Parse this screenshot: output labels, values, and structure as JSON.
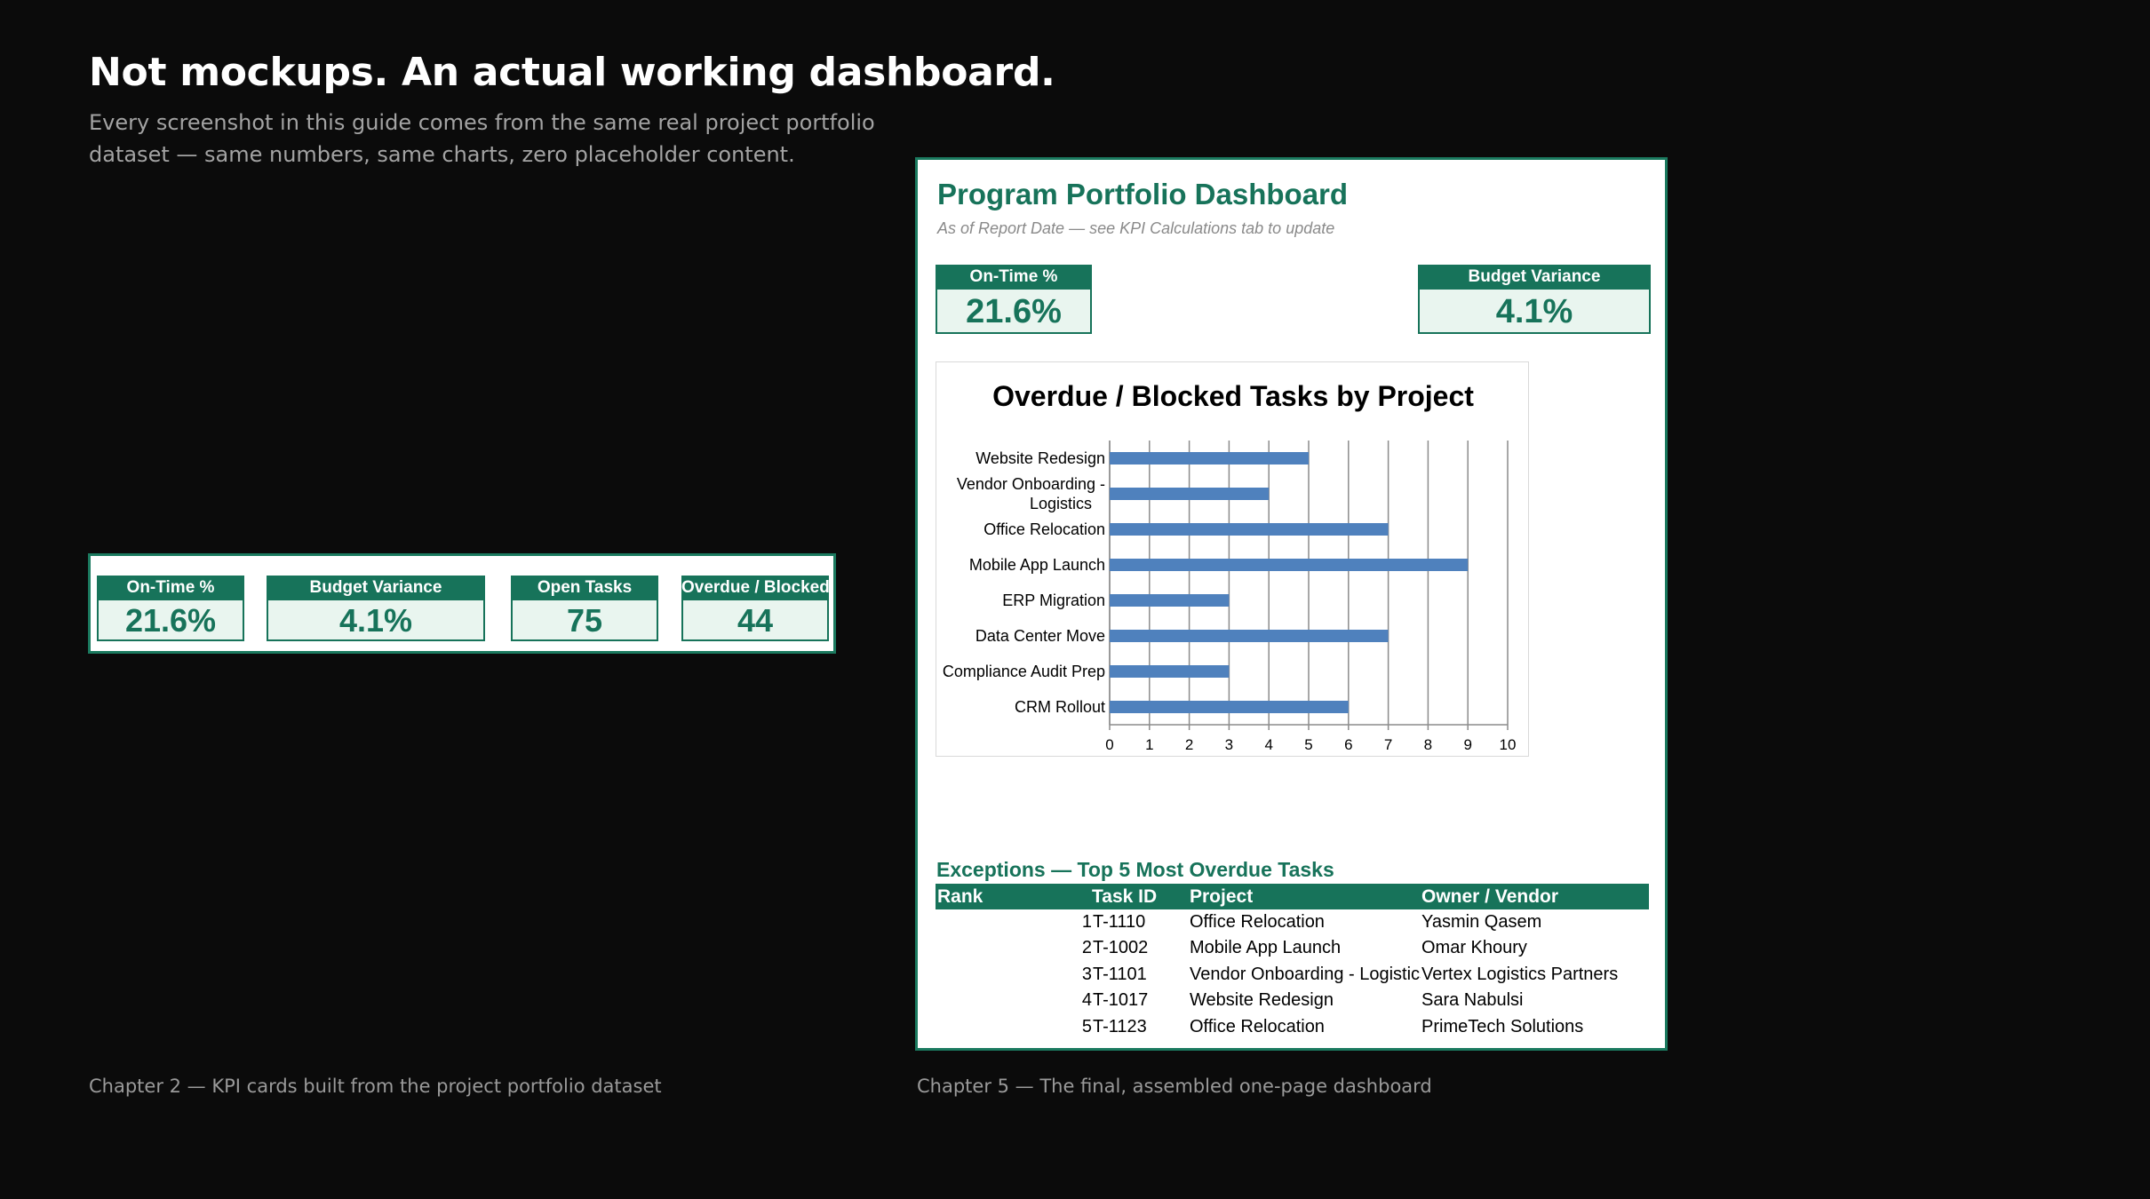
{
  "headline": "Not mockups. An actual working dashboard.",
  "subhead": "Every screenshot in this guide comes from the same real project portfolio dataset — same numbers, same charts, zero placeholder content.",
  "captions": {
    "left": "Chapter 2 — KPI cards built from the project portfolio dataset",
    "right": "Chapter 5 — The final, assembled one-page dashboard"
  },
  "kpis": {
    "on_time": {
      "label": "On-Time %",
      "value": "21.6%"
    },
    "budget_variance": {
      "label": "Budget Variance",
      "value": "4.1%"
    },
    "open_tasks": {
      "label": "Open Tasks",
      "value": "75"
    },
    "overdue_blocked": {
      "label": "Overdue / Blocked",
      "value": "44"
    }
  },
  "dashboard": {
    "title": "Program Portfolio Dashboard",
    "subtitle": "As of Report Date — see KPI Calculations tab to update",
    "exceptions": {
      "title": "Exceptions — Top 5 Most Overdue Tasks",
      "headers": {
        "rank": "Rank",
        "task_id": "Task ID",
        "project": "Project",
        "owner": "Owner / Vendor"
      },
      "rows": [
        {
          "rank": "1",
          "task_id": "T-1110",
          "project": "Office Relocation",
          "owner": "Yasmin Qasem"
        },
        {
          "rank": "2",
          "task_id": "T-1002",
          "project": "Mobile App Launch",
          "owner": "Omar Khoury"
        },
        {
          "rank": "3",
          "task_id": "T-1101",
          "project": "Vendor Onboarding - Logistics",
          "owner": "Vertex Logistics Partners"
        },
        {
          "rank": "4",
          "task_id": "T-1017",
          "project": "Website Redesign",
          "owner": "Sara Nabulsi"
        },
        {
          "rank": "5",
          "task_id": "T-1123",
          "project": "Office Relocation",
          "owner": "PrimeTech Solutions"
        }
      ]
    }
  },
  "chart_data": {
    "type": "bar",
    "orientation": "horizontal",
    "title": "Overdue / Blocked Tasks by Project",
    "categories": [
      "Website Redesign",
      "Vendor Onboarding - Logistics",
      "Office Relocation",
      "Mobile App Launch",
      "ERP Migration",
      "Data Center Move",
      "Compliance Audit Prep",
      "CRM Rollout"
    ],
    "values": [
      5,
      4,
      7,
      9,
      3,
      7,
      3,
      6
    ],
    "xlim": [
      0,
      10
    ],
    "xticks": [
      "0",
      "1",
      "2",
      "3",
      "4",
      "5",
      "6",
      "7",
      "8",
      "9",
      "10"
    ],
    "grid": true,
    "legend": "none",
    "bar_color": "#4f81bd"
  },
  "colors": {
    "accent": "#17735a",
    "kpi_fill": "#e9f5ef",
    "background": "#0b0b0b"
  }
}
